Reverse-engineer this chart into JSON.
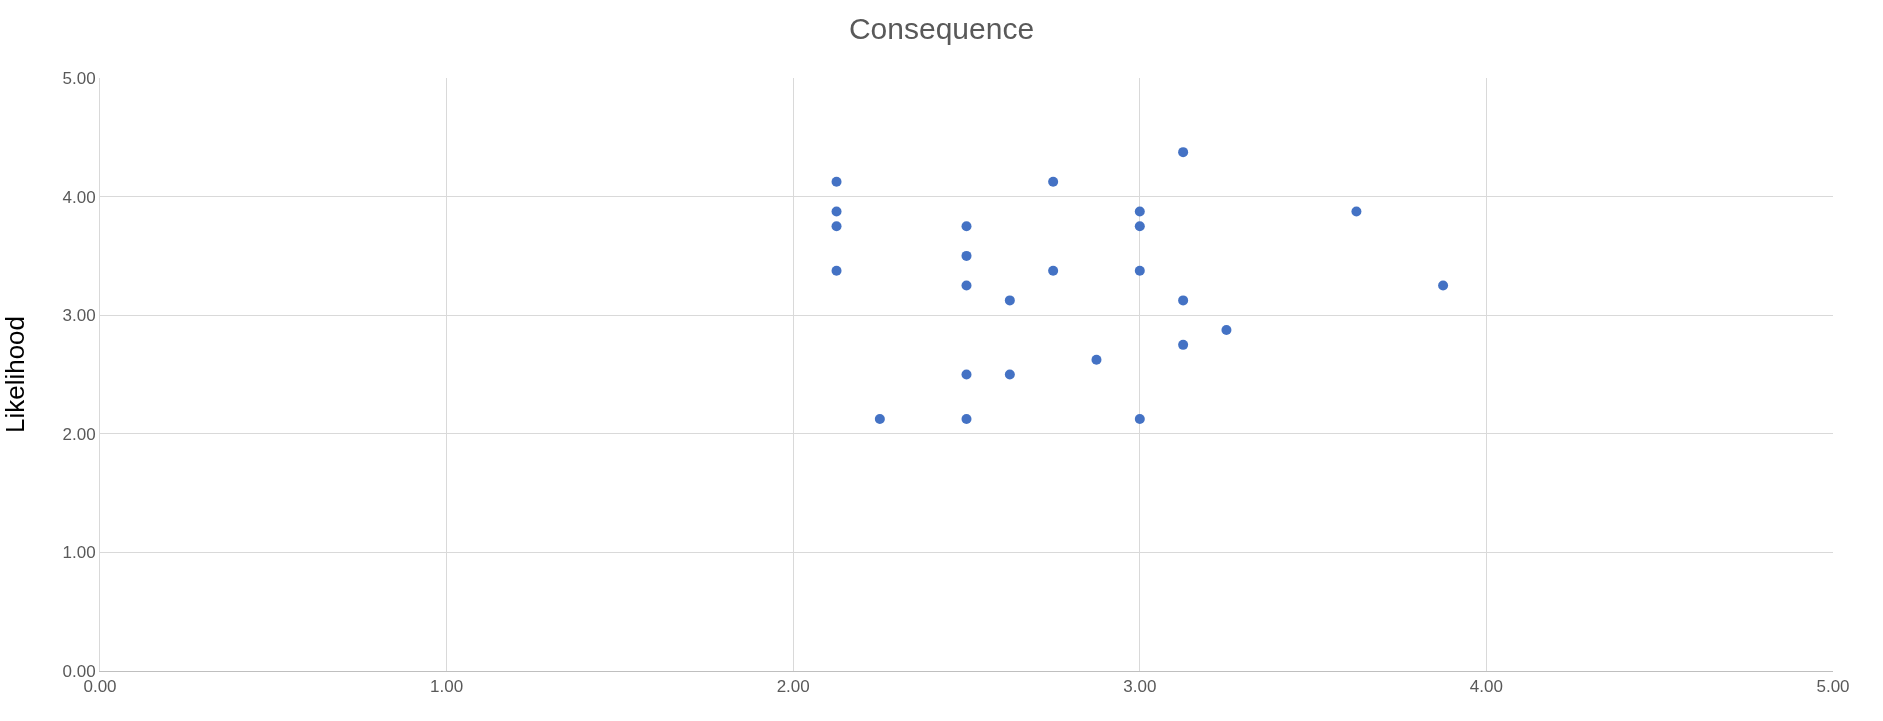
{
  "chart_data": {
    "type": "scatter",
    "title": "Consequence",
    "ylabel": "Likelihood",
    "x": [
      2.125,
      2.125,
      2.125,
      2.125,
      2.25,
      2.5,
      2.5,
      2.5,
      2.5,
      2.5,
      2.625,
      2.625,
      2.75,
      2.75,
      2.875,
      3.0,
      3.0,
      3.0,
      3.0,
      3.125,
      3.125,
      3.125,
      3.25,
      3.625,
      3.875
    ],
    "series": [
      {
        "color": "#4472c4",
        "values": [
          4.125,
          3.875,
          3.75,
          3.375,
          2.125,
          3.75,
          3.5,
          3.25,
          2.5,
          2.125,
          3.125,
          2.5,
          4.125,
          3.375,
          2.625,
          3.875,
          3.75,
          3.375,
          2.125,
          4.375,
          3.125,
          2.75,
          2.875,
          3.875,
          3.25
        ]
      }
    ],
    "xlim": [
      0,
      5
    ],
    "ylim": [
      0,
      5
    ],
    "xticks": [
      {
        "value": 0,
        "label": "0.00"
      },
      {
        "value": 1,
        "label": "1.00"
      },
      {
        "value": 2,
        "label": "2.00"
      },
      {
        "value": 3,
        "label": "3.00"
      },
      {
        "value": 4,
        "label": "4.00"
      },
      {
        "value": 5,
        "label": "5.00"
      }
    ],
    "yticks": [
      {
        "value": 0,
        "label": "0.00"
      },
      {
        "value": 1,
        "label": "1.00"
      },
      {
        "value": 2,
        "label": "2.00"
      },
      {
        "value": 3,
        "label": "3.00"
      },
      {
        "value": 4,
        "label": "4.00"
      },
      {
        "value": 5,
        "label": "5.00"
      }
    ],
    "grid": true,
    "marker": "circle"
  }
}
